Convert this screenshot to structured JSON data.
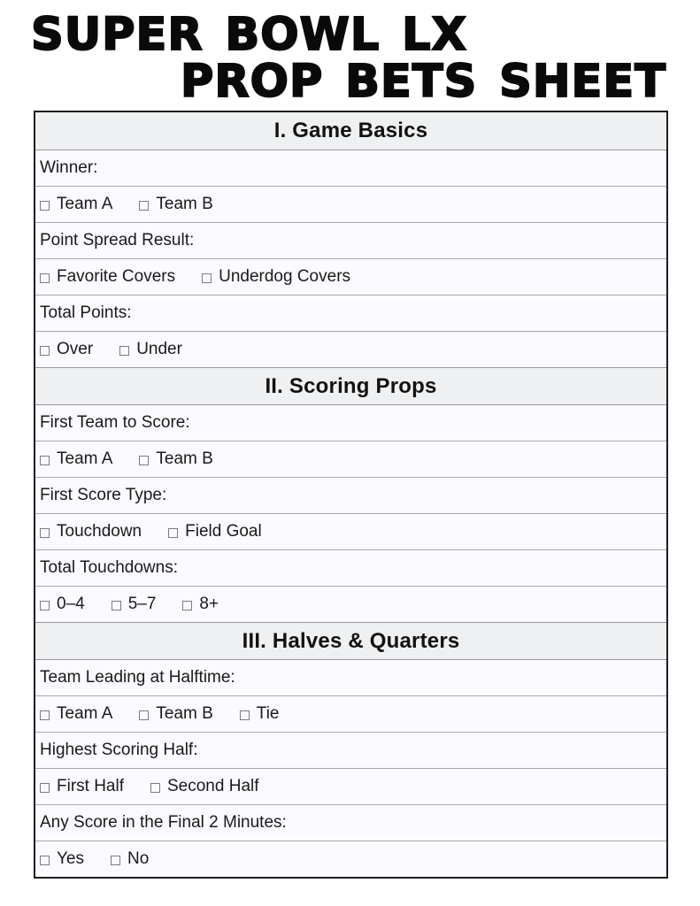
{
  "title": {
    "line1": "SUPER BOWL LX",
    "line2": "PROP BETS SHEET"
  },
  "colors": {
    "outer_border": "#1d1d1d",
    "header_bg": "#eef0f1",
    "header_divider": "#97979f",
    "row_bg": "#fafaff",
    "divider": "#a8a8b0",
    "text": "#1a1a1a",
    "checkbox_border": "#7b7b84"
  },
  "sections": [
    {
      "heading": "I. Game Basics",
      "rows": [
        {
          "type": "label",
          "text": "Winner:"
        },
        {
          "type": "options",
          "options": [
            "Team A",
            "Team B"
          ]
        },
        {
          "type": "label",
          "text": "Point Spread Result:"
        },
        {
          "type": "options",
          "options": [
            "Favorite Covers",
            "Underdog Covers"
          ]
        },
        {
          "type": "label",
          "text": "Total Points:"
        },
        {
          "type": "options",
          "options": [
            "Over",
            "Under"
          ]
        }
      ]
    },
    {
      "heading": "II. Scoring Props",
      "rows": [
        {
          "type": "label",
          "text": "First Team to Score:"
        },
        {
          "type": "options",
          "options": [
            "Team A",
            "Team B"
          ]
        },
        {
          "type": "label",
          "text": "First Score Type:"
        },
        {
          "type": "options",
          "options": [
            "Touchdown",
            "Field Goal"
          ]
        },
        {
          "type": "label",
          "text": "Total Touchdowns:"
        },
        {
          "type": "options",
          "options": [
            "0–4",
            "5–7",
            "8+"
          ]
        }
      ]
    },
    {
      "heading": "III. Halves & Quarters",
      "rows": [
        {
          "type": "label",
          "text": "Team Leading at Halftime:"
        },
        {
          "type": "options",
          "options": [
            "Team A",
            "Team B",
            "Tie"
          ]
        },
        {
          "type": "label",
          "text": "Highest Scoring Half:"
        },
        {
          "type": "options",
          "options": [
            "First Half",
            "Second Half"
          ]
        },
        {
          "type": "label",
          "text": "Any Score in the Final 2 Minutes:"
        },
        {
          "type": "options",
          "options": [
            "Yes",
            "No"
          ]
        }
      ]
    }
  ]
}
